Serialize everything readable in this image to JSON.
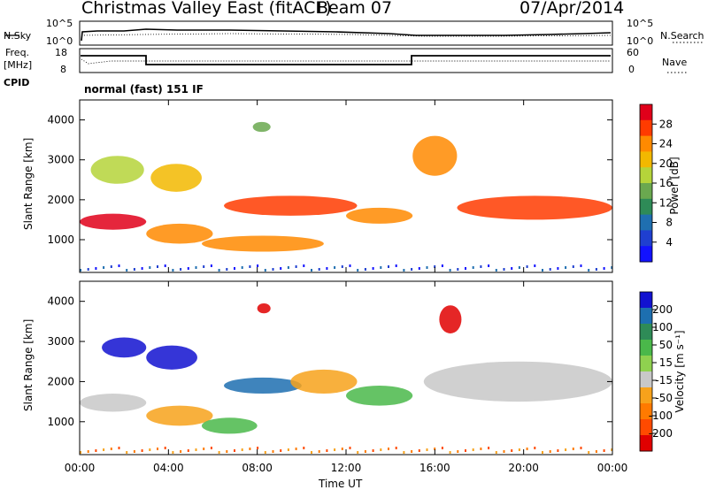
{
  "header": {
    "station": "Christmas Valley East (fitACF)",
    "beam": "Beam 07",
    "date": "07/Apr/2014"
  },
  "top_panels": {
    "nsky_label": "N.Sky",
    "nsearch_label": "N.Search",
    "nsky_ticks": [
      "10^5",
      "10^0"
    ],
    "nsearch_ticks": [
      "10^5",
      "10^0"
    ],
    "freq_label": "Freq.",
    "freq_unit": "[MHz]",
    "freq_ticks": [
      "18",
      "8"
    ],
    "nave_label": "Nave",
    "nave_ticks": [
      "60",
      "0"
    ],
    "cpid_label": "CPID",
    "cpid_value": "normal (fast) 151 IF"
  },
  "power_scale": {
    "label": "Power [dB]",
    "ticks": [
      "28",
      "24",
      "20",
      "16",
      "12",
      "8",
      "4"
    ],
    "colors": [
      "#e0001a",
      "#ff3b00",
      "#ff8a00",
      "#f2b800",
      "#b5d43a",
      "#6aa84f",
      "#2e8b57",
      "#1f6fb0",
      "#1f3fd0",
      "#1212ff"
    ]
  },
  "velocity_scale": {
    "label": "Velocity [m s⁻¹]",
    "ticks": [
      "200",
      "100",
      "50",
      "15",
      "-15",
      "-50",
      "-100",
      "-200"
    ],
    "colors": [
      "#1212d0",
      "#1d6fb0",
      "#2e8b57",
      "#4ab84a",
      "#8fd14f",
      "#c8c8c8",
      "#f7a21b",
      "#ff7a00",
      "#ff4a00",
      "#e00000"
    ]
  },
  "chart_data": [
    {
      "type": "heatmap",
      "panel": "power",
      "ylabel": "Slant Range [km]",
      "yticks": [
        "4000",
        "3000",
        "2000",
        "1000"
      ],
      "ylim": [
        180,
        4500
      ],
      "xlim": [
        0,
        24
      ],
      "xticks": [
        "00:00",
        "04:00",
        "08:00",
        "12:00",
        "16:00",
        "20:00",
        "00:00"
      ],
      "bands": [
        {
          "t0": 0.0,
          "t1": 3.0,
          "r0": 1250,
          "r1": 1650,
          "value": 28
        },
        {
          "t0": 0.5,
          "t1": 2.9,
          "r0": 2400,
          "r1": 3100,
          "value": 18
        },
        {
          "t0": 3.0,
          "t1": 6.0,
          "r0": 900,
          "r1": 1400,
          "value": 24
        },
        {
          "t0": 3.2,
          "t1": 5.5,
          "r0": 2200,
          "r1": 2900,
          "value": 20
        },
        {
          "t0": 5.5,
          "t1": 11.0,
          "r0": 700,
          "r1": 1100,
          "value": 22
        },
        {
          "t0": 6.5,
          "t1": 12.5,
          "r0": 1600,
          "r1": 2100,
          "value": 26
        },
        {
          "t0": 12.0,
          "t1": 15.0,
          "r0": 1400,
          "r1": 1800,
          "value": 24
        },
        {
          "t0": 15.0,
          "t1": 17.0,
          "r0": 2600,
          "r1": 3600,
          "value": 22
        },
        {
          "t0": 17.0,
          "t1": 24.0,
          "r0": 1500,
          "r1": 2100,
          "value": 26
        },
        {
          "t0": 7.8,
          "t1": 8.6,
          "r0": 3700,
          "r1": 3950,
          "value": 14
        }
      ]
    },
    {
      "type": "heatmap",
      "panel": "velocity",
      "ylabel": "Slant Range [km]",
      "yticks": [
        "4000",
        "3000",
        "2000",
        "1000"
      ],
      "ylim": [
        180,
        4500
      ],
      "xlim": [
        0,
        24
      ],
      "xticks": [
        "00:00",
        "04:00",
        "08:00",
        "12:00",
        "16:00",
        "20:00",
        "00:00"
      ],
      "xlabel": "Time UT",
      "bands": [
        {
          "t0": 0.0,
          "t1": 3.0,
          "r0": 1250,
          "r1": 1700,
          "value": 0
        },
        {
          "t0": 1.0,
          "t1": 3.0,
          "r0": 2600,
          "r1": 3100,
          "value": 200
        },
        {
          "t0": 3.0,
          "t1": 5.3,
          "r0": 2300,
          "r1": 2900,
          "value": 200
        },
        {
          "t0": 3.0,
          "t1": 6.0,
          "r0": 900,
          "r1": 1400,
          "value": -50
        },
        {
          "t0": 5.5,
          "t1": 8.0,
          "r0": 700,
          "r1": 1100,
          "value": 50
        },
        {
          "t0": 6.5,
          "t1": 10.0,
          "r0": 1700,
          "r1": 2100,
          "value": 100
        },
        {
          "t0": 9.5,
          "t1": 12.5,
          "r0": 1700,
          "r1": 2300,
          "value": -50
        },
        {
          "t0": 12.0,
          "t1": 15.0,
          "r0": 1400,
          "r1": 1900,
          "value": 50
        },
        {
          "t0": 15.5,
          "t1": 24.0,
          "r0": 1500,
          "r1": 2500,
          "value": 0
        },
        {
          "t0": 8.0,
          "t1": 8.6,
          "r0": 3700,
          "r1": 3950,
          "value": -200
        },
        {
          "t0": 16.2,
          "t1": 17.2,
          "r0": 3200,
          "r1": 3900,
          "value": -200
        }
      ]
    }
  ]
}
